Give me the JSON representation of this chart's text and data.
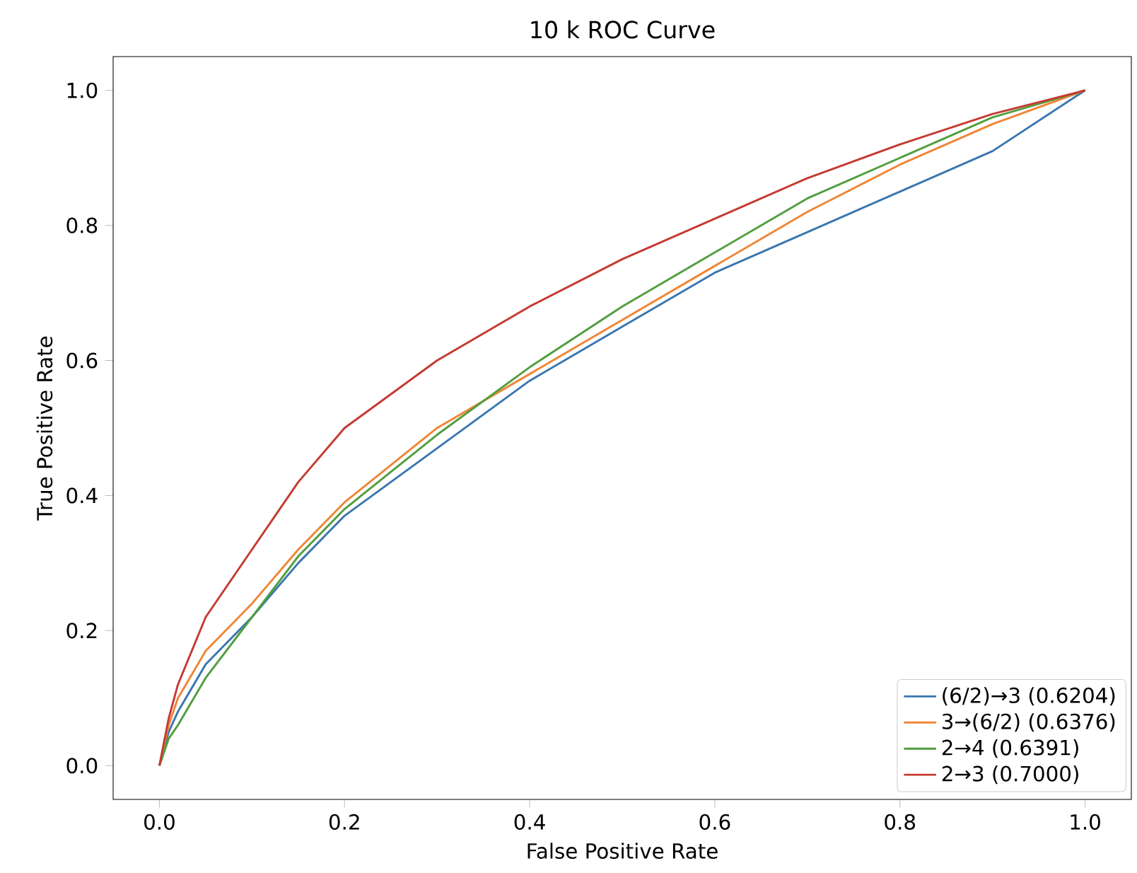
{
  "chart_data": {
    "type": "line",
    "title": "10 k ROC Curve",
    "xlabel": "False Positive Rate",
    "ylabel": "True Positive Rate",
    "xlim": [
      -0.05,
      1.05
    ],
    "ylim": [
      -0.05,
      1.05
    ],
    "xticks": [
      {
        "value": 0,
        "label": "0.0"
      },
      0.2,
      0.4,
      0.6,
      0.8,
      {
        "value": 1,
        "label": "1.0"
      }
    ],
    "yticks": [
      {
        "value": 0,
        "label": "0.0"
      },
      0.2,
      0.4,
      0.6,
      0.8,
      {
        "value": 1,
        "label": "1.0"
      }
    ],
    "grid": false,
    "legend": "bottom right",
    "marker": "none",
    "line_style": "solid",
    "x": [
      0,
      0.01,
      0.02,
      0.05,
      0.1,
      0.15,
      0.2,
      0.3,
      0.4,
      0.5,
      0.6,
      0.7,
      0.8,
      0.9,
      1.0
    ],
    "series": [
      {
        "name": "(6/2)→3 (0.6204)",
        "color": "#3a76af",
        "values": [
          0,
          0.05,
          0.08,
          0.15,
          0.22,
          0.3,
          0.37,
          0.47,
          0.57,
          0.65,
          0.73,
          0.79,
          0.85,
          0.91,
          1.0
        ]
      },
      {
        "name": "3→(6/2) (0.6376)",
        "color": "#ef8636",
        "values": [
          0,
          0.06,
          0.1,
          0.17,
          0.24,
          0.32,
          0.39,
          0.5,
          0.58,
          0.66,
          0.74,
          0.82,
          0.89,
          0.95,
          1.0
        ]
      },
      {
        "name": "2→4 (0.6391)",
        "color": "#519e3e",
        "values": [
          0,
          0.04,
          0.06,
          0.13,
          0.22,
          0.31,
          0.38,
          0.49,
          0.59,
          0.68,
          0.76,
          0.84,
          0.9,
          0.96,
          1.0
        ]
      },
      {
        "name": "2→3 (0.7000)",
        "color": "#c53a32",
        "values": [
          0,
          0.07,
          0.12,
          0.22,
          0.32,
          0.42,
          0.5,
          0.6,
          0.68,
          0.75,
          0.81,
          0.87,
          0.92,
          0.965,
          1.0
        ]
      }
    ]
  }
}
